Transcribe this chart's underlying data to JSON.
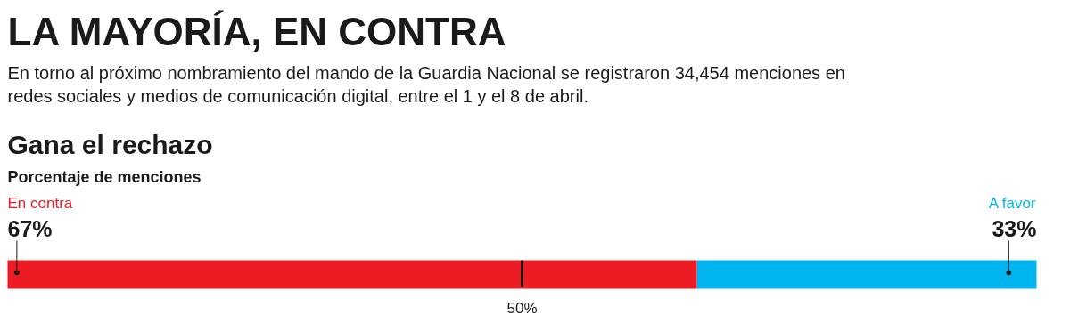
{
  "chart_data": {
    "type": "bar",
    "orientation": "horizontal",
    "stacked": true,
    "title": "LA MAYORÍA, EN CONTRA",
    "subtitle": "En torno al próximo nombramiento del mando de la Guardia Nacional se registraron 34,454 menciones en redes sociales y medios de comunicación digital, entre el 1 y el 8 de abril.",
    "annotations": [
      "Gana el rechazo",
      "Porcentaje de menciones"
    ],
    "categories": [
      null
    ],
    "series": [
      {
        "name": "En contra",
        "color": "#ed1c24",
        "values": [
          67
        ],
        "value_labels": [
          "67%"
        ]
      },
      {
        "name": "A favor",
        "color": "#00b5ef",
        "values": [
          33
        ],
        "value_labels": [
          "33%"
        ]
      }
    ],
    "xlim": [
      0,
      100
    ],
    "tick_labels": false,
    "legend": false,
    "grid": false,
    "ref_lines": [
      {
        "axis": "x",
        "value": 50,
        "label": "50%",
        "color": "#000000"
      }
    ]
  }
}
